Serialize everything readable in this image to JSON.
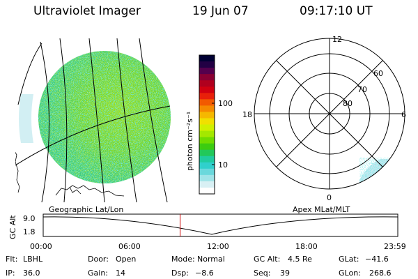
{
  "header": {
    "instrument": "Ultraviolet Imager",
    "date": "19 Jun 07",
    "time": "09:17:10 UT"
  },
  "colorbar": {
    "unit_label": "photon cm⁻²s⁻¹",
    "ticks": [
      "100",
      "10"
    ],
    "colors": [
      "#000033",
      "#220044",
      "#55004d",
      "#8a0033",
      "#b0001e",
      "#d00010",
      "#e8200a",
      "#f25a00",
      "#f58a00",
      "#f5b800",
      "#f0e000",
      "#d0f000",
      "#a4e800",
      "#70dc00",
      "#3ccc10",
      "#22c85a",
      "#20cca0",
      "#30d0cc",
      "#6ad8dc",
      "#a0e4e8",
      "#d8f0f4",
      "#ffffff"
    ]
  },
  "left_panel": {
    "label": "Geographic Lat/Lon"
  },
  "right_panel": {
    "label": "Apex MLat/MLT",
    "mlt_labels": {
      "top": "12",
      "left": "18",
      "right": "6",
      "bottom": "0"
    },
    "lat_labels": [
      "60",
      "70",
      "80"
    ]
  },
  "timeline": {
    "axis_label": "GC Alt",
    "y_ticks": [
      "9.0",
      "1.8"
    ],
    "x_ticks": [
      "00:00",
      "06:00",
      "12:00",
      "18:00",
      "23:59"
    ],
    "current_time_fraction": 0.386
  },
  "info": {
    "row1": [
      {
        "label": "Flt:",
        "value": "LBHL"
      },
      {
        "label": "Door:",
        "value": "Open"
      },
      {
        "label": "Mode:",
        "value": "Normal"
      },
      {
        "label": "GC Alt:",
        "value": "4.5 Re"
      },
      {
        "label": "GLat:",
        "value": "−41.6"
      }
    ],
    "row2": [
      {
        "label": "IP:",
        "value": "36.0"
      },
      {
        "label": "Gain:",
        "value": "14"
      },
      {
        "label": "Dsp:",
        "value": "−8.6"
      },
      {
        "label": "Seq:",
        "value": "39"
      },
      {
        "label": "GLon:",
        "value": "268.6"
      }
    ]
  }
}
